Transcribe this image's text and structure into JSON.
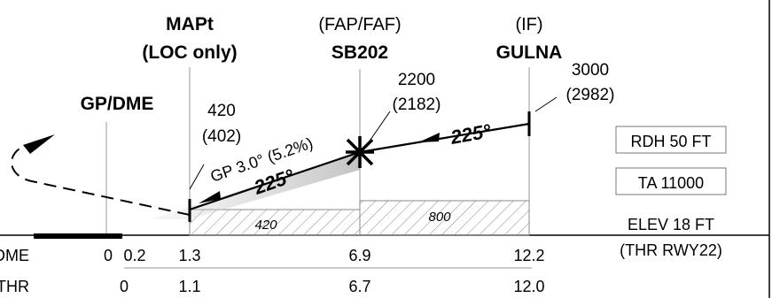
{
  "fixes": {
    "mapt": {
      "name": "MAPt",
      "note": "(LOC only)",
      "alt": "420",
      "alt_paren": "(402)"
    },
    "faf": {
      "role": "(FAP/FAF)",
      "name": "SB202",
      "alt": "2200",
      "alt_paren": "(2182)"
    },
    "if": {
      "role": "(IF)",
      "name": "GULNA",
      "alt": "3000",
      "alt_paren": "(2982)"
    }
  },
  "gp_dme_label": "GP/DME",
  "glidepath": "GP 3.0° (5.2%)",
  "course": "225°",
  "minimum_altitudes": [
    "420",
    "800"
  ],
  "info_boxes": {
    "rdh": "RDH 50 FT",
    "ta": "TA 11000"
  },
  "elevation": {
    "elev": "ELEV 18 FT",
    "thr": "(THR RWY22)"
  },
  "scales": {
    "dme": {
      "label": "DME",
      "values": [
        "0",
        "0.2",
        "1.3",
        "6.9",
        "12.2"
      ]
    },
    "thr": {
      "label": "THR",
      "values": [
        "0",
        "1.1",
        "6.7",
        "12.0"
      ]
    }
  },
  "colors": {
    "ink": "#000000",
    "grid": "#888888",
    "box": "#777777"
  }
}
